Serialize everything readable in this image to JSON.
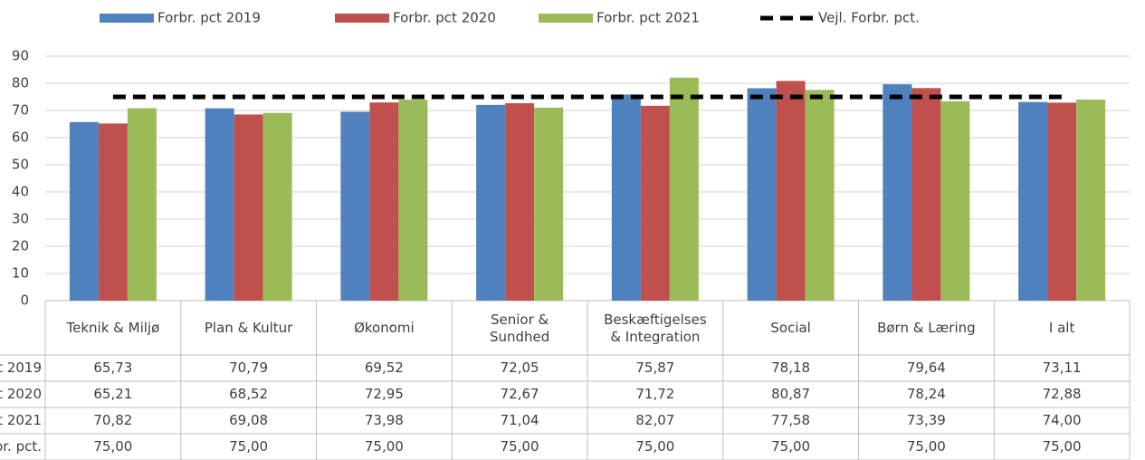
{
  "chart_data": {
    "type": "bar",
    "categories": [
      "Teknik & Miljø",
      "Plan & Kultur",
      "Økonomi",
      "Senior & Sundhed",
      "Beskæftigelses & Integration",
      "Social",
      "Børn & Læring",
      "I alt"
    ],
    "series": [
      {
        "name": "Forbr. pct 2019",
        "color": "#4f81bd",
        "type": "bar",
        "values": [
          65.73,
          70.79,
          69.52,
          72.05,
          75.87,
          78.18,
          79.64,
          73.11
        ],
        "value_labels": [
          "65,73",
          "70,79",
          "69,52",
          "72,05",
          "75,87",
          "78,18",
          "79,64",
          "73,11"
        ]
      },
      {
        "name": "Forbr. pct 2020",
        "color": "#c0504d",
        "type": "bar",
        "values": [
          65.21,
          68.52,
          72.95,
          72.67,
          71.72,
          80.87,
          78.24,
          72.88
        ],
        "value_labels": [
          "65,21",
          "68,52",
          "72,95",
          "72,67",
          "71,72",
          "80,87",
          "78,24",
          "72,88"
        ]
      },
      {
        "name": "Forbr. pct 2021",
        "color": "#9bbb59",
        "type": "bar",
        "values": [
          70.82,
          69.08,
          73.98,
          71.04,
          82.07,
          77.58,
          73.39,
          74.0
        ],
        "value_labels": [
          "70,82",
          "69,08",
          "73,98",
          "71,04",
          "82,07",
          "77,58",
          "73,39",
          "74,00"
        ]
      },
      {
        "name": "Vejl. Forbr. pct.",
        "color": "#000000",
        "type": "line",
        "values": [
          75,
          75,
          75,
          75,
          75,
          75,
          75,
          75
        ],
        "value_labels": [
          "75,00",
          "75,00",
          "75,00",
          "75,00",
          "75,00",
          "75,00",
          "75,00",
          "75,00"
        ]
      }
    ],
    "ylim": [
      0,
      90
    ],
    "yticks": [
      0,
      10,
      20,
      30,
      40,
      50,
      60,
      70,
      80,
      90
    ],
    "grid": true,
    "legend": "top"
  }
}
